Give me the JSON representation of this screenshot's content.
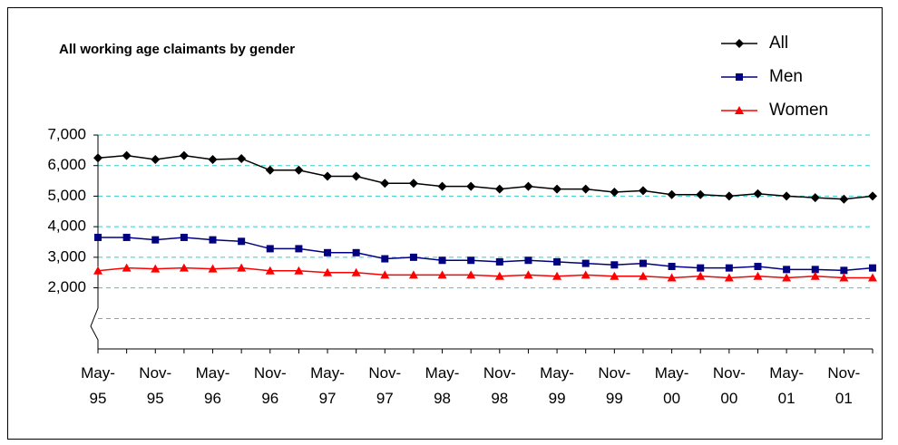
{
  "chart_data": {
    "type": "line",
    "title": "All working age claimants by gender",
    "categories": [
      "May-95",
      null,
      "Nov-95",
      null,
      "May-96",
      null,
      "Nov-96",
      null,
      "May-97",
      null,
      "Nov-97",
      null,
      "May-98",
      null,
      "Nov-98",
      null,
      "May-99",
      null,
      "Nov-99",
      null,
      "May-00",
      null,
      "Nov-00",
      null,
      "May-01",
      null,
      "Nov-01",
      null
    ],
    "series": [
      {
        "name": "All",
        "color": "#000000",
        "marker": "diamond",
        "values": [
          6250,
          6330,
          6200,
          6330,
          6200,
          6230,
          5850,
          5850,
          5650,
          5650,
          5420,
          5420,
          5320,
          5320,
          5230,
          5320,
          5230,
          5230,
          5130,
          5180,
          5050,
          5050,
          5000,
          5080,
          5000,
          4950,
          4900,
          5000
        ]
      },
      {
        "name": "Men",
        "color": "#000080",
        "marker": "square",
        "values": [
          3650,
          3650,
          3570,
          3650,
          3570,
          3520,
          3280,
          3280,
          3150,
          3150,
          2950,
          3000,
          2900,
          2900,
          2850,
          2900,
          2850,
          2800,
          2750,
          2800,
          2700,
          2650,
          2650,
          2700,
          2600,
          2600,
          2570,
          2650
        ]
      },
      {
        "name": "Women",
        "color": "#ff0000",
        "marker": "triangle",
        "values": [
          2560,
          2650,
          2620,
          2650,
          2620,
          2650,
          2560,
          2560,
          2500,
          2500,
          2420,
          2420,
          2420,
          2420,
          2380,
          2420,
          2380,
          2420,
          2380,
          2380,
          2330,
          2380,
          2330,
          2380,
          2330,
          2380,
          2330,
          2330
        ]
      }
    ],
    "ylim": [
      0,
      7000
    ],
    "yticks": [
      {
        "value": 2000,
        "label": "2,000"
      },
      {
        "value": 3000,
        "label": "3,000"
      },
      {
        "value": 4000,
        "label": "4,000"
      },
      {
        "value": 5000,
        "label": "5,000"
      },
      {
        "value": 6000,
        "label": "6,000"
      },
      {
        "value": 7000,
        "label": "7,000"
      }
    ],
    "grid": true,
    "grid_color": "#33cccc",
    "legend": "top-right"
  }
}
